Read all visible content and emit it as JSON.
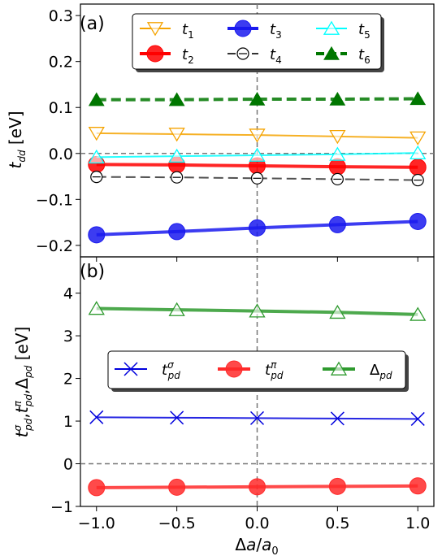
{
  "chart_data": [
    {
      "panel_label": "(a)",
      "type": "line",
      "ylabel_main": "t",
      "ylabel_sub": "dd",
      "ylabel_unit": " [eV]",
      "ylim": [
        -0.225,
        0.325
      ],
      "yticks": [
        -0.2,
        -0.1,
        0.0,
        0.1,
        0.2,
        0.3
      ],
      "ytick_labels": [
        "−0.2",
        "−0.1",
        "0.0",
        "0.1",
        "0.2",
        "0.3"
      ],
      "x": [
        -1.0,
        -0.5,
        0.0,
        0.5,
        1.0
      ],
      "legend_position": "upper center",
      "series": [
        {
          "name": "t1",
          "label_main": "t",
          "label_sub": "1",
          "values": [
            0.044,
            0.042,
            0.04,
            0.037,
            0.034
          ],
          "color": "#f5a300",
          "marker": "triangle-down-open",
          "linestyle": "solid",
          "linewidth": 2
        },
        {
          "name": "t2",
          "label_main": "t",
          "label_sub": "2",
          "values": [
            -0.024,
            -0.025,
            -0.027,
            -0.029,
            -0.03
          ],
          "color": "#ff0000",
          "marker": "circle-filled",
          "linestyle": "solid",
          "linewidth": 4
        },
        {
          "name": "t3",
          "label_main": "t",
          "label_sub": "3",
          "values": [
            -0.177,
            -0.17,
            -0.162,
            -0.155,
            -0.148
          ],
          "color": "#1a1aee",
          "marker": "circle-filled",
          "linestyle": "solid",
          "linewidth": 4
        },
        {
          "name": "t4",
          "label_main": "t",
          "label_sub": "4",
          "values": [
            -0.051,
            -0.052,
            -0.054,
            -0.056,
            -0.058
          ],
          "color": "#333333",
          "marker": "circle-open-dot",
          "linestyle": "dashed",
          "linewidth": 2
        },
        {
          "name": "t5",
          "label_main": "t",
          "label_sub": "5",
          "values": [
            -0.008,
            -0.006,
            -0.004,
            -0.002,
            0.001
          ],
          "color": "#00ffff",
          "marker": "triangle-up-open",
          "linestyle": "solid",
          "linewidth": 2
        },
        {
          "name": "t6",
          "label_main": "t",
          "label_sub": "6",
          "values": [
            0.117,
            0.117,
            0.118,
            0.118,
            0.119
          ],
          "color": "#007700",
          "marker": "triangle-up-filled",
          "linestyle": "dashed",
          "linewidth": 4
        }
      ]
    },
    {
      "panel_label": "(b)",
      "type": "line",
      "ylabel_text": "tσpd,tπpd,Δpd [eV]",
      "xlabel_text": "Δa/a0",
      "ylim": [
        -1.0,
        4.85
      ],
      "yticks": [
        -1,
        0,
        1,
        2,
        3,
        4
      ],
      "ytick_labels": [
        "−1",
        "0",
        "1",
        "2",
        "3",
        "4"
      ],
      "xticks": [
        -1.0,
        -0.5,
        0.0,
        0.5,
        1.0
      ],
      "xtick_labels": [
        "−1.0",
        "−0.5",
        "0.0",
        "0.5",
        "1.0"
      ],
      "xlim": [
        -1.1,
        1.1
      ],
      "x": [
        -1.0,
        -0.5,
        0.0,
        0.5,
        1.0
      ],
      "legend_position": "center",
      "series": [
        {
          "name": "tσpd",
          "label_main": "t",
          "label_sup": "σ",
          "label_sub": "pd",
          "values": [
            1.09,
            1.08,
            1.07,
            1.06,
            1.05
          ],
          "color": "#0000dd",
          "marker": "x",
          "linestyle": "solid",
          "linewidth": 2
        },
        {
          "name": "tπpd",
          "label_main": "t",
          "label_sup": "π",
          "label_sub": "pd",
          "values": [
            -0.56,
            -0.55,
            -0.54,
            -0.53,
            -0.52
          ],
          "color": "#ff2a2a",
          "marker": "circle-filled",
          "linestyle": "solid",
          "linewidth": 4
        },
        {
          "name": "Δpd",
          "label_main": "Δ",
          "label_sub": "pd",
          "values": [
            3.64,
            3.61,
            3.58,
            3.55,
            3.5
          ],
          "color": "#2e9a2e",
          "marker": "triangle-up-open",
          "linestyle": "solid",
          "linewidth": 4
        }
      ]
    }
  ]
}
